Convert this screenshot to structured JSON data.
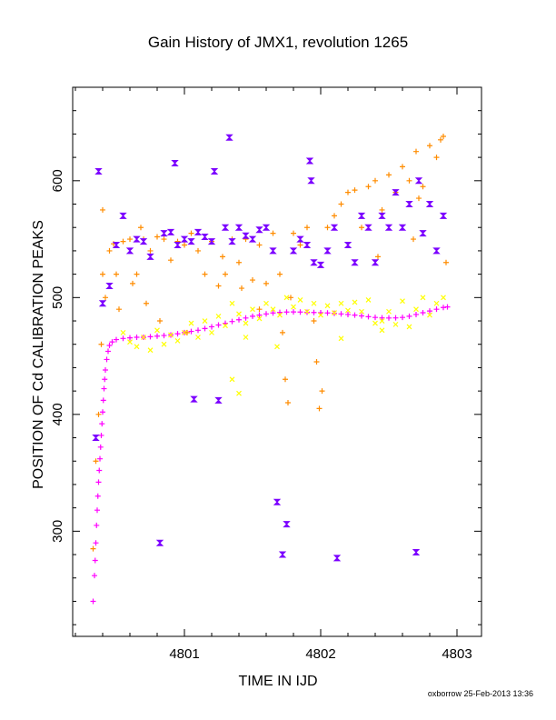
{
  "chart_data": {
    "type": "scatter",
    "title": "Gain History of JMX1, revolution 1265",
    "xlabel": "TIME IN IJD",
    "ylabel": "POSITION OF Cd CALIBRATION PEAKS",
    "xlim": [
      4800.18,
      4803.18
    ],
    "ylim": [
      210,
      680
    ],
    "x_ticks": [
      4801,
      4802,
      4803
    ],
    "x_tick_labels": [
      "4801",
      "4802",
      "4803"
    ],
    "y_ticks": [
      300,
      400,
      500,
      600
    ],
    "y_tick_labels": [
      "300",
      "400",
      "500",
      "600"
    ],
    "grid": false,
    "legend": "none",
    "footer": "oxborrow 25-Feb-2013 13:36",
    "colors": {
      "magenta": "#ff00ff",
      "yellow": "#ffff00",
      "orange": "#ff8c00",
      "purple": "#7b00ff"
    },
    "series": [
      {
        "color": "magenta",
        "marker": "plus",
        "points": [
          [
            4800.33,
            240
          ],
          [
            4800.34,
            262
          ],
          [
            4800.345,
            275
          ],
          [
            4800.35,
            290
          ],
          [
            4800.355,
            305
          ],
          [
            4800.36,
            318
          ],
          [
            4800.365,
            330
          ],
          [
            4800.37,
            342
          ],
          [
            4800.375,
            352
          ],
          [
            4800.38,
            362
          ],
          [
            4800.385,
            372
          ],
          [
            4800.39,
            382
          ],
          [
            4800.395,
            392
          ],
          [
            4800.4,
            402
          ],
          [
            4800.405,
            412
          ],
          [
            4800.41,
            422
          ],
          [
            4800.415,
            430
          ],
          [
            4800.42,
            438
          ],
          [
            4800.43,
            447
          ],
          [
            4800.44,
            454
          ],
          [
            4800.45,
            459
          ],
          [
            4800.47,
            462
          ],
          [
            4800.5,
            464
          ],
          [
            4800.55,
            465
          ],
          [
            4800.6,
            465.5
          ],
          [
            4800.65,
            466
          ],
          [
            4800.7,
            466
          ],
          [
            4800.75,
            466.5
          ],
          [
            4800.8,
            467
          ],
          [
            4800.85,
            467.5
          ],
          [
            4800.9,
            468
          ],
          [
            4800.95,
            469
          ],
          [
            4801.0,
            470
          ],
          [
            4801.05,
            471
          ],
          [
            4801.1,
            472
          ],
          [
            4801.15,
            473.5
          ],
          [
            4801.2,
            475
          ],
          [
            4801.25,
            476.5
          ],
          [
            4801.3,
            478
          ],
          [
            4801.35,
            479.5
          ],
          [
            4801.4,
            481
          ],
          [
            4801.45,
            482.5
          ],
          [
            4801.5,
            484
          ],
          [
            4801.55,
            485
          ],
          [
            4801.6,
            486
          ],
          [
            4801.65,
            486.8
          ],
          [
            4801.7,
            487.3
          ],
          [
            4801.75,
            487.6
          ],
          [
            4801.8,
            487.7
          ],
          [
            4801.85,
            487.6
          ],
          [
            4801.9,
            487.4
          ],
          [
            4801.95,
            487.2
          ],
          [
            4802.0,
            487
          ],
          [
            4802.05,
            486.8
          ],
          [
            4802.1,
            486.5
          ],
          [
            4802.15,
            486
          ],
          [
            4802.2,
            485.5
          ],
          [
            4802.25,
            485
          ],
          [
            4802.3,
            484.3
          ],
          [
            4802.35,
            483.6
          ],
          [
            4802.4,
            483
          ],
          [
            4802.45,
            482.6
          ],
          [
            4802.5,
            482.5
          ],
          [
            4802.55,
            482.6
          ],
          [
            4802.6,
            483
          ],
          [
            4802.65,
            484
          ],
          [
            4802.7,
            485.5
          ],
          [
            4802.75,
            487
          ],
          [
            4802.8,
            488.5
          ],
          [
            4802.85,
            490
          ],
          [
            4802.9,
            491.5
          ],
          [
            4802.93,
            492
          ]
        ]
      },
      {
        "color": "yellow",
        "marker": "cross",
        "points": [
          [
            4800.55,
            470
          ],
          [
            4800.6,
            462
          ],
          [
            4800.65,
            458
          ],
          [
            4800.7,
            466
          ],
          [
            4800.75,
            455
          ],
          [
            4800.8,
            472
          ],
          [
            4800.85,
            460
          ],
          [
            4800.9,
            468
          ],
          [
            4800.95,
            463
          ],
          [
            4801.0,
            470
          ],
          [
            4801.05,
            478
          ],
          [
            4801.1,
            466
          ],
          [
            4801.15,
            480
          ],
          [
            4801.2,
            470
          ],
          [
            4801.25,
            484
          ],
          [
            4801.3,
            476
          ],
          [
            4801.35,
            495
          ],
          [
            4801.4,
            486
          ],
          [
            4801.45,
            478
          ],
          [
            4801.5,
            490
          ],
          [
            4801.55,
            482
          ],
          [
            4801.6,
            495
          ],
          [
            4801.65,
            490
          ],
          [
            4801.7,
            485
          ],
          [
            4801.75,
            500
          ],
          [
            4801.8,
            492
          ],
          [
            4801.85,
            498
          ],
          [
            4801.9,
            488
          ],
          [
            4801.95,
            495
          ],
          [
            4802.0,
            485
          ],
          [
            4802.05,
            493
          ],
          [
            4802.1,
            487
          ],
          [
            4802.15,
            495
          ],
          [
            4802.2,
            489
          ],
          [
            4802.25,
            496
          ],
          [
            4802.3,
            488
          ],
          [
            4802.35,
            498
          ],
          [
            4802.4,
            478
          ],
          [
            4802.45,
            472
          ],
          [
            4802.5,
            488
          ],
          [
            4802.55,
            477
          ],
          [
            4802.6,
            497
          ],
          [
            4802.65,
            475
          ],
          [
            4802.7,
            490
          ],
          [
            4802.75,
            500
          ],
          [
            4802.8,
            485
          ],
          [
            4802.85,
            495
          ],
          [
            4802.9,
            500
          ],
          [
            4801.35,
            430
          ],
          [
            4801.4,
            418
          ],
          [
            4801.45,
            466
          ],
          [
            4801.68,
            458
          ],
          [
            4802.15,
            465
          ],
          [
            4802.45,
            480
          ]
        ]
      },
      {
        "color": "orange",
        "marker": "plus",
        "points": [
          [
            4800.33,
            285
          ],
          [
            4800.35,
            360
          ],
          [
            4800.37,
            400
          ],
          [
            4800.39,
            460
          ],
          [
            4800.4,
            520
          ],
          [
            4800.42,
            500
          ],
          [
            4800.45,
            540
          ],
          [
            4800.48,
            546
          ],
          [
            4800.5,
            520
          ],
          [
            4800.52,
            490
          ],
          [
            4800.55,
            548
          ],
          [
            4800.6,
            550
          ],
          [
            4800.62,
            512
          ],
          [
            4800.65,
            520
          ],
          [
            4800.7,
            550
          ],
          [
            4800.72,
            495
          ],
          [
            4800.75,
            540
          ],
          [
            4800.8,
            552
          ],
          [
            4800.82,
            480
          ],
          [
            4800.85,
            550
          ],
          [
            4800.9,
            532
          ],
          [
            4800.95,
            548
          ],
          [
            4801.0,
            545
          ],
          [
            4801.02,
            470
          ],
          [
            4801.05,
            555
          ],
          [
            4801.1,
            540
          ],
          [
            4801.15,
            520
          ],
          [
            4801.2,
            548
          ],
          [
            4801.25,
            510
          ],
          [
            4801.28,
            535
          ],
          [
            4801.3,
            520
          ],
          [
            4801.35,
            550
          ],
          [
            4801.4,
            530
          ],
          [
            4801.42,
            508
          ],
          [
            4801.45,
            550
          ],
          [
            4801.5,
            515
          ],
          [
            4801.55,
            545
          ],
          [
            4801.6,
            512
          ],
          [
            4801.65,
            555
          ],
          [
            4801.7,
            520
          ],
          [
            4801.72,
            470
          ],
          [
            4801.74,
            430
          ],
          [
            4801.76,
            410
          ],
          [
            4801.78,
            500
          ],
          [
            4801.8,
            555
          ],
          [
            4801.85,
            545
          ],
          [
            4801.9,
            560
          ],
          [
            4801.95,
            480
          ],
          [
            4801.97,
            445
          ],
          [
            4801.99,
            405
          ],
          [
            4802.01,
            420
          ],
          [
            4802.05,
            560
          ],
          [
            4802.1,
            570
          ],
          [
            4802.15,
            580
          ],
          [
            4802.2,
            590
          ],
          [
            4802.25,
            592
          ],
          [
            4802.3,
            560
          ],
          [
            4802.35,
            595
          ],
          [
            4802.4,
            600
          ],
          [
            4802.45,
            575
          ],
          [
            4802.5,
            605
          ],
          [
            4802.55,
            590
          ],
          [
            4802.6,
            612
          ],
          [
            4802.65,
            600
          ],
          [
            4802.7,
            625
          ],
          [
            4802.72,
            585
          ],
          [
            4802.75,
            595
          ],
          [
            4802.8,
            630
          ],
          [
            4802.85,
            620
          ],
          [
            4802.88,
            635
          ],
          [
            4802.9,
            638
          ],
          [
            4802.92,
            530
          ],
          [
            4800.4,
            575
          ],
          [
            4800.68,
            560
          ],
          [
            4801.55,
            490
          ],
          [
            4802.42,
            535
          ],
          [
            4802.68,
            550
          ]
        ]
      },
      {
        "color": "purple",
        "marker": "bowtie",
        "points": [
          [
            4800.35,
            380
          ],
          [
            4800.37,
            608
          ],
          [
            4800.4,
            495
          ],
          [
            4800.45,
            510
          ],
          [
            4800.5,
            545
          ],
          [
            4800.55,
            570
          ],
          [
            4800.6,
            540
          ],
          [
            4800.65,
            550
          ],
          [
            4800.7,
            548
          ],
          [
            4800.75,
            535
          ],
          [
            4800.82,
            290
          ],
          [
            4800.85,
            555
          ],
          [
            4800.9,
            556
          ],
          [
            4800.95,
            545
          ],
          [
            4801.0,
            550
          ],
          [
            4801.05,
            548
          ],
          [
            4801.07,
            413
          ],
          [
            4801.1,
            556
          ],
          [
            4801.15,
            552
          ],
          [
            4801.2,
            548
          ],
          [
            4801.22,
            608
          ],
          [
            4801.25,
            412
          ],
          [
            4801.3,
            560
          ],
          [
            4801.35,
            548
          ],
          [
            4801.4,
            560
          ],
          [
            4801.45,
            553
          ],
          [
            4801.5,
            550
          ],
          [
            4801.55,
            558
          ],
          [
            4801.6,
            560
          ],
          [
            4801.65,
            540
          ],
          [
            4801.68,
            325
          ],
          [
            4801.72,
            280
          ],
          [
            4801.75,
            306
          ],
          [
            4801.8,
            540
          ],
          [
            4801.85,
            550
          ],
          [
            4801.9,
            545
          ],
          [
            4801.93,
            600
          ],
          [
            4801.95,
            530
          ],
          [
            4802.0,
            528
          ],
          [
            4802.05,
            540
          ],
          [
            4802.1,
            560
          ],
          [
            4802.12,
            277
          ],
          [
            4802.2,
            545
          ],
          [
            4802.25,
            530
          ],
          [
            4802.3,
            570
          ],
          [
            4802.35,
            560
          ],
          [
            4802.4,
            530
          ],
          [
            4802.45,
            570
          ],
          [
            4802.5,
            560
          ],
          [
            4802.55,
            590
          ],
          [
            4802.6,
            560
          ],
          [
            4802.65,
            580
          ],
          [
            4802.7,
            282
          ],
          [
            4802.72,
            600
          ],
          [
            4802.75,
            555
          ],
          [
            4802.8,
            580
          ],
          [
            4802.85,
            540
          ],
          [
            4802.9,
            570
          ],
          [
            4800.93,
            615
          ],
          [
            4801.33,
            637
          ],
          [
            4801.92,
            617
          ]
        ]
      }
    ]
  }
}
